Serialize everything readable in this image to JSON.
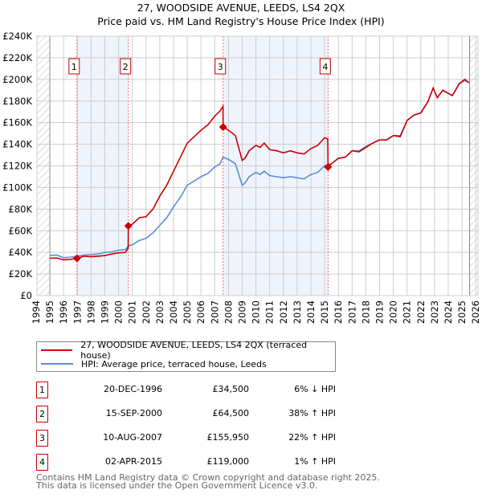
{
  "title_line1": "27, WOODSIDE AVENUE, LEEDS, LS4 2QX",
  "title_line2": "Price paid vs. HM Land Registry's House Price Index (HPI)",
  "colors": {
    "price_paid": "#cc0000",
    "hpi": "#5b8fd4",
    "shade": "#eef3fc"
  },
  "chart_data": {
    "type": "line",
    "title": "Price paid vs. HM Land Registry's House Price Index (HPI)",
    "xlim": [
      1994,
      2026
    ],
    "ylim": [
      0,
      240000
    ],
    "x_ticks": [
      "1994",
      "1995",
      "1996",
      "1997",
      "1998",
      "1999",
      "2000",
      "2001",
      "2002",
      "2003",
      "2004",
      "2005",
      "2006",
      "2007",
      "2008",
      "2009",
      "2010",
      "2011",
      "2012",
      "2013",
      "2014",
      "2015",
      "2016",
      "2017",
      "2018",
      "2019",
      "2020",
      "2021",
      "2022",
      "2023",
      "2024",
      "2025",
      "2026"
    ],
    "y_ticks": [
      {
        "v": 0,
        "label": "£0"
      },
      {
        "v": 20000,
        "label": "£20K"
      },
      {
        "v": 40000,
        "label": "£40K"
      },
      {
        "v": 60000,
        "label": "£60K"
      },
      {
        "v": 80000,
        "label": "£80K"
      },
      {
        "v": 100000,
        "label": "£100K"
      },
      {
        "v": 120000,
        "label": "£120K"
      },
      {
        "v": 140000,
        "label": "£140K"
      },
      {
        "v": 160000,
        "label": "£160K"
      },
      {
        "v": 180000,
        "label": "£180K"
      },
      {
        "v": 200000,
        "label": "£200K"
      },
      {
        "v": 220000,
        "label": "£220K"
      },
      {
        "v": 240000,
        "label": "£240K"
      }
    ],
    "grid": true,
    "series": [
      {
        "name": "27, WOODSIDE AVENUE, LEEDS, LS4 2QX (terraced house)",
        "x": [
          1995,
          1995.5,
          1996,
          1996.5,
          1996.97,
          1997.5,
          1998,
          1998.5,
          1999,
          1999.5,
          2000,
          2000.5,
          2000.7,
          2000.71,
          2001,
          2001.5,
          2002,
          2002.5,
          2003,
          2003.5,
          2004,
          2004.5,
          2005,
          2005.5,
          2006,
          2006.5,
          2007,
          2007.4,
          2007.6,
          2007.61,
          2008,
          2008.5,
          2009,
          2009.2,
          2009.5,
          2010,
          2010.3,
          2010.6,
          2011,
          2011.5,
          2012,
          2012.5,
          2013,
          2013.5,
          2014,
          2014.5,
          2015,
          2015.23,
          2015.25,
          2015.5,
          2016,
          2016.5,
          2017,
          2017.5,
          2018,
          2018.5,
          2019,
          2019.5,
          2020,
          2020.5,
          2021,
          2021.5,
          2022,
          2022.5,
          2022.9,
          2023.2,
          2023.6,
          2024,
          2024.3,
          2024.8,
          2025.2,
          2025.5
        ],
        "y": [
          34500,
          34800,
          33000,
          33500,
          34500,
          36500,
          36000,
          36500,
          37000,
          38500,
          39500,
          40000,
          44000,
          64500,
          66000,
          72000,
          73000,
          80000,
          92000,
          102000,
          115000,
          128000,
          141000,
          147000,
          153000,
          158000,
          166000,
          171000,
          175000,
          156000,
          153000,
          148000,
          125000,
          127000,
          134000,
          139000,
          137000,
          141000,
          135000,
          134000,
          132000,
          134000,
          132000,
          131000,
          136000,
          139000,
          146000,
          145000,
          119000,
          122000,
          127000,
          128000,
          134000,
          133000,
          137000,
          141000,
          144000,
          144000,
          148000,
          147000,
          162000,
          167000,
          169000,
          179000,
          192000,
          183000,
          190000,
          187000,
          185000,
          196000,
          200000,
          197000
        ]
      },
      {
        "name": "HPI: Average price, terraced house, Leeds",
        "x": [
          1995,
          1995.5,
          1996,
          1996.5,
          1997,
          1997.5,
          1998,
          1998.5,
          1999,
          1999.5,
          2000,
          2000.5,
          2000.7,
          2001,
          2001.5,
          2002,
          2002.5,
          2003,
          2003.5,
          2004,
          2004.5,
          2005,
          2005.5,
          2006,
          2006.5,
          2007,
          2007.4,
          2007.6,
          2008,
          2008.5,
          2009,
          2009.2,
          2009.5,
          2010,
          2010.3,
          2010.6,
          2011,
          2011.5,
          2012,
          2012.5,
          2013,
          2013.5,
          2014,
          2014.5,
          2015,
          2015.25,
          2015.5,
          2016,
          2016.5,
          2017,
          2017.5,
          2018,
          2018.5,
          2019,
          2019.5,
          2020,
          2020.5,
          2021,
          2021.5,
          2022,
          2022.5,
          2022.9,
          2023.2,
          2023.6,
          2024,
          2024.3,
          2024.8,
          2025.2,
          2025.5
        ],
        "y": [
          37000,
          37500,
          35000,
          35500,
          36500,
          37500,
          38000,
          38500,
          40000,
          40500,
          42000,
          42500,
          46000,
          47000,
          51000,
          53000,
          58000,
          65000,
          72000,
          82000,
          91000,
          102000,
          106000,
          110000,
          113000,
          119000,
          122000,
          128000,
          126000,
          122000,
          102000,
          104000,
          110000,
          114000,
          112000,
          115000,
          111000,
          110000,
          109000,
          110000,
          109000,
          108000,
          112000,
          114000,
          120000,
          121000,
          122000,
          127000,
          128000,
          134000,
          134000,
          138000,
          141000,
          144000,
          144000,
          148000,
          148000,
          162000,
          167000,
          169000,
          179000,
          192000,
          183000,
          190000,
          187000,
          185000,
          196000,
          199000,
          197000
        ]
      }
    ],
    "sales": [
      {
        "n": "1",
        "x": 1996.97,
        "y": 34500
      },
      {
        "n": "2",
        "x": 2000.71,
        "y": 64500
      },
      {
        "n": "3",
        "x": 2007.61,
        "y": 155950
      },
      {
        "n": "4",
        "x": 2015.25,
        "y": 119000
      }
    ],
    "shaded_ranges": [
      [
        1996.97,
        2000.71
      ],
      [
        2007.61,
        2015.25
      ]
    ],
    "data_end": 2025.55
  },
  "legend": {
    "price_paid": "27, WOODSIDE AVENUE, LEEDS, LS4 2QX (terraced house)",
    "hpi": "HPI: Average price, terraced house, Leeds"
  },
  "table": [
    {
      "n": "1",
      "date": "20-DEC-1996",
      "price": "£34,500",
      "hpi": "6% ↓ HPI"
    },
    {
      "n": "2",
      "date": "15-SEP-2000",
      "price": "£64,500",
      "hpi": "38% ↑ HPI"
    },
    {
      "n": "3",
      "date": "10-AUG-2007",
      "price": "£155,950",
      "hpi": "22% ↑ HPI"
    },
    {
      "n": "4",
      "date": "02-APR-2015",
      "price": "£119,000",
      "hpi": "1% ↑ HPI"
    }
  ],
  "footer_line1": "Contains HM Land Registry data © Crown copyright and database right 2025.",
  "footer_line2": "This data is licensed under the Open Government Licence v3.0."
}
